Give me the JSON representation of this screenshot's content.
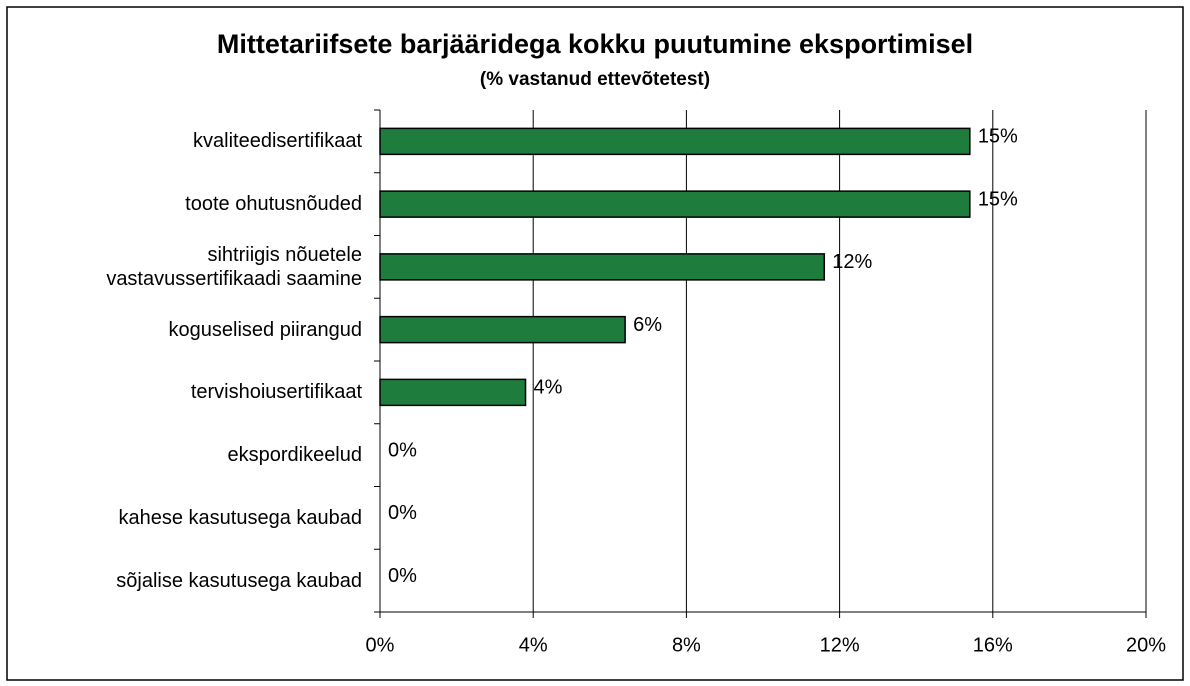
{
  "chart_data": {
    "type": "bar",
    "orientation": "horizontal",
    "title": "Mittetariifsete barjääridega kokku puutumine eksportimisel",
    "subtitle": "(% vastanud ettevõtetest)",
    "categories": [
      "kvaliteedisertifikaat",
      "toote ohutusnõuded",
      "sihtriigis nõuetele\nvastavussertifikaadi saamine",
      "koguselised piirangud",
      "tervishoiusertifikaat",
      "ekspordikeelud",
      "kahese kasutusega kaubad",
      "sõjalise kasutusega kaubad"
    ],
    "values": [
      15.4,
      15.4,
      11.6,
      6.4,
      3.8,
      0,
      0,
      0
    ],
    "value_labels": [
      "15%",
      "15%",
      "12%",
      "6%",
      "4%",
      "0%",
      "0%",
      "0%"
    ],
    "color": "#1e7d3c",
    "xlim": [
      0,
      20
    ],
    "xticks": [
      {
        "value": 0,
        "label": "0%"
      },
      {
        "value": 4,
        "label": "4%"
      },
      {
        "value": 8,
        "label": "8%"
      },
      {
        "value": 12,
        "label": "12%"
      },
      {
        "value": 16,
        "label": "16%"
      },
      {
        "value": 20,
        "label": "20%"
      }
    ],
    "grid": true
  }
}
